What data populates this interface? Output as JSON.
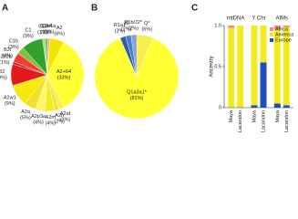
{
  "chart_data": [
    {
      "type": "pie",
      "panel": "A",
      "categories": [
        "L3b1a",
        "A2",
        "A2+64",
        "A2af",
        "A2n",
        "A2m",
        "A2p3a",
        "A2q",
        "A2w1",
        "B2",
        "B2b2b",
        "B2i",
        "C1b",
        "C1",
        "C1c",
        "C1o4"
      ],
      "values": [
        1,
        6,
        33,
        2,
        2,
        4,
        4,
        5,
        9,
        9,
        1,
        4,
        3,
        9,
        1,
        1
      ],
      "value_labels": [
        "(1%)",
        "(6%)",
        "(33%)",
        "(2%)",
        "(2%)",
        "(4%)",
        "(4%)",
        "(5%)",
        "(9%)",
        "(9%)",
        "(1%)",
        "(4%)",
        "(3%)",
        "(9%)",
        "(1%)",
        "(1%)"
      ],
      "colors": [
        "#f4a582",
        "#f2e600",
        "#ffff33",
        "#f7ef4a",
        "#eee437",
        "#f5ec1f",
        "#fff566",
        "#f0e02a",
        "#f6ea0d",
        "#e31a1c",
        "#b2182b",
        "#f4402a",
        "#7fbf3f",
        "#33a02c",
        "#a6d96a",
        "#66bd63"
      ]
    },
    {
      "type": "pie",
      "panel": "B",
      "categories": [
        "Q*",
        "Q1a3a1*",
        "R1a1",
        "J2",
        "R1b/J2*"
      ],
      "values": [
        6,
        81,
        2,
        2,
        2
      ],
      "value_labels": [
        "(6%)",
        "(81%)",
        "(2%)",
        "(2%)",
        "(2%)"
      ],
      "colors": [
        "#f6ee4c",
        "#ffff33",
        "#2c5fa8",
        "#4b7cc4",
        "#7fa3da"
      ]
    },
    {
      "type": "stacked-bar",
      "panel": "C",
      "y_label": "Ancestry",
      "groups": [
        "mtDNA",
        "Y Chr",
        "AIMs"
      ],
      "categories": [
        "Maya",
        "Lacandon",
        "Maya",
        "Lacandon",
        "Maya",
        "Lacandon"
      ],
      "series": [
        {
          "name": "Europe",
          "color": "#1f4fbf",
          "values": [
            0,
            0,
            0.03,
            0.55,
            0.05,
            0.03
          ]
        },
        {
          "name": "America",
          "color": "#f2ea1e",
          "values": [
            0.97,
            1.0,
            0.97,
            0.45,
            0.9,
            0.95
          ]
        },
        {
          "name": "Africa",
          "color": "#f08c7a",
          "values": [
            0.03,
            0,
            0,
            0,
            0.05,
            0.02
          ]
        }
      ],
      "ylim": [
        0,
        1
      ],
      "yticks": [
        0,
        0.5,
        {
          "value": 1,
          "label": "1.0"
        }
      ]
    }
  ]
}
